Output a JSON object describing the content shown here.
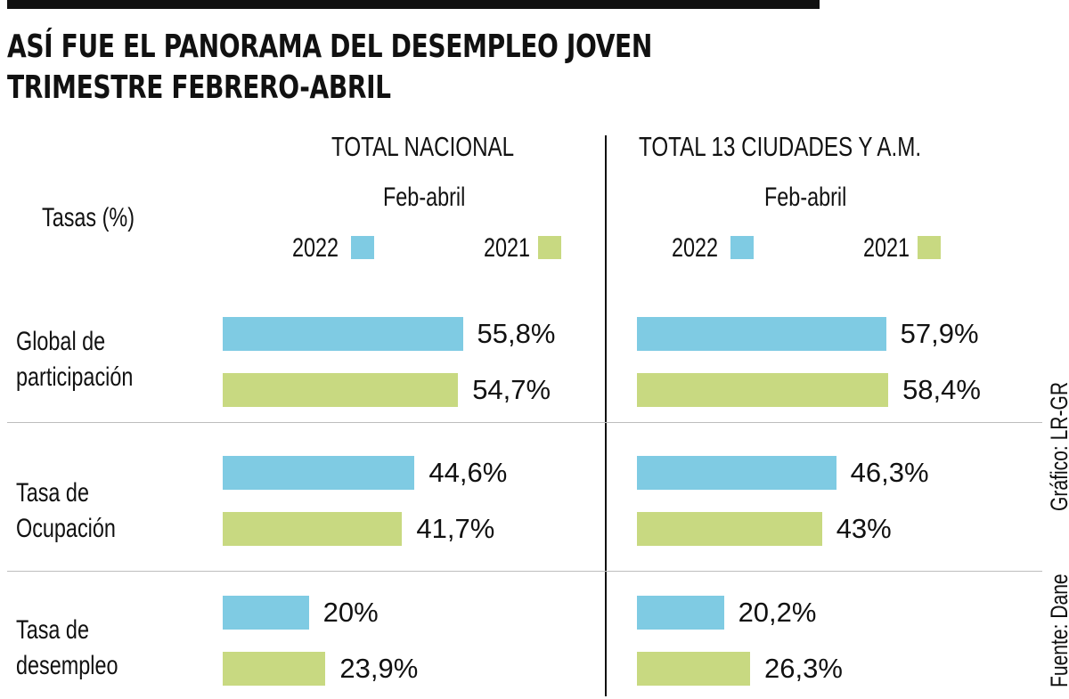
{
  "title": {
    "line1": "ASÍ FUE EL PANORAMA DEL DESEMPLEO JOVEN",
    "line2": "TRIMESTRE FEBRERO-ABRIL"
  },
  "rates_label": "Tasas (%)",
  "panels": [
    {
      "header": "TOTAL NACIONAL",
      "period": "Feb-abril",
      "legend": [
        "2022",
        "2021"
      ]
    },
    {
      "header": "TOTAL 13 CIUDADES Y A.M.",
      "period": "Feb-abril",
      "legend": [
        "2022",
        "2021"
      ]
    }
  ],
  "categories": [
    {
      "line1": "Global de",
      "line2": "participación"
    },
    {
      "line1": "Tasa de",
      "line2": "Ocupación"
    },
    {
      "line1": "Tasa de",
      "line2": "desempleo"
    }
  ],
  "colors": {
    "y2022": "#7fcbe3",
    "y2021": "#c8d981"
  },
  "chart_data": {
    "type": "bar",
    "title": "ASÍ FUE EL PANORAMA DEL DESEMPLEO JOVEN TRIMESTRE FEBRERO-ABRIL",
    "ylabel": "Tasas (%)",
    "categories": [
      "Global de participación",
      "Tasa de Ocupación",
      "Tasa de desempleo"
    ],
    "panels": [
      {
        "name": "TOTAL NACIONAL",
        "series": [
          {
            "name": "2022",
            "values": [
              55.8,
              44.6,
              20
            ],
            "labels": [
              "55,8%",
              "44,6%",
              "20%"
            ]
          },
          {
            "name": "2021",
            "values": [
              54.7,
              41.7,
              23.9
            ],
            "labels": [
              "54,7%",
              "41,7%",
              "23,9%"
            ]
          }
        ]
      },
      {
        "name": "TOTAL 13 CIUDADES Y A.M.",
        "series": [
          {
            "name": "2022",
            "values": [
              57.9,
              46.3,
              20.2
            ],
            "labels": [
              "57,9%",
              "46,3%",
              "20,2%"
            ]
          },
          {
            "name": "2021",
            "values": [
              58.4,
              43,
              26.3
            ],
            "labels": [
              "58,4%",
              "43%",
              "26,3%"
            ]
          }
        ]
      }
    ],
    "xlim": [
      0,
      60
    ]
  },
  "credits": {
    "graphic": "Gráfico: LR-GR",
    "source": "Fuente: Dane"
  }
}
